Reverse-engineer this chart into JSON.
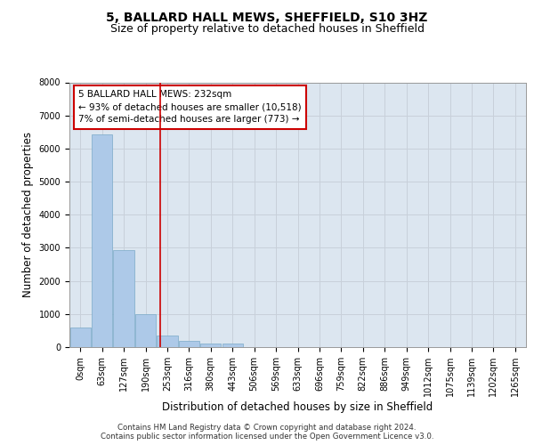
{
  "title": "5, BALLARD HALL MEWS, SHEFFIELD, S10 3HZ",
  "subtitle": "Size of property relative to detached houses in Sheffield",
  "xlabel": "Distribution of detached houses by size in Sheffield",
  "ylabel": "Number of detached properties",
  "categories": [
    "0sqm",
    "63sqm",
    "127sqm",
    "190sqm",
    "253sqm",
    "316sqm",
    "380sqm",
    "443sqm",
    "506sqm",
    "569sqm",
    "633sqm",
    "696sqm",
    "759sqm",
    "822sqm",
    "886sqm",
    "949sqm",
    "1012sqm",
    "1075sqm",
    "1139sqm",
    "1202sqm",
    "1265sqm"
  ],
  "values": [
    580,
    6430,
    2920,
    1000,
    360,
    175,
    110,
    95,
    0,
    0,
    0,
    0,
    0,
    0,
    0,
    0,
    0,
    0,
    0,
    0,
    0
  ],
  "bar_color": "#adc9e8",
  "bar_edge_color": "#7aaac8",
  "vline_color": "#cc0000",
  "annotation_text": "5 BALLARD HALL MEWS: 232sqm\n← 93% of detached houses are smaller (10,518)\n7% of semi-detached houses are larger (773) →",
  "annotation_box_color": "#cc0000",
  "ylim": [
    0,
    8000
  ],
  "yticks": [
    0,
    1000,
    2000,
    3000,
    4000,
    5000,
    6000,
    7000,
    8000
  ],
  "grid_color": "#c8d0da",
  "bg_color": "#dce6f0",
  "footer": "Contains HM Land Registry data © Crown copyright and database right 2024.\nContains public sector information licensed under the Open Government Licence v3.0.",
  "title_fontsize": 10,
  "subtitle_fontsize": 9,
  "axis_label_fontsize": 8.5,
  "tick_fontsize": 7,
  "annotation_fontsize": 7.5,
  "footer_fontsize": 6.2
}
